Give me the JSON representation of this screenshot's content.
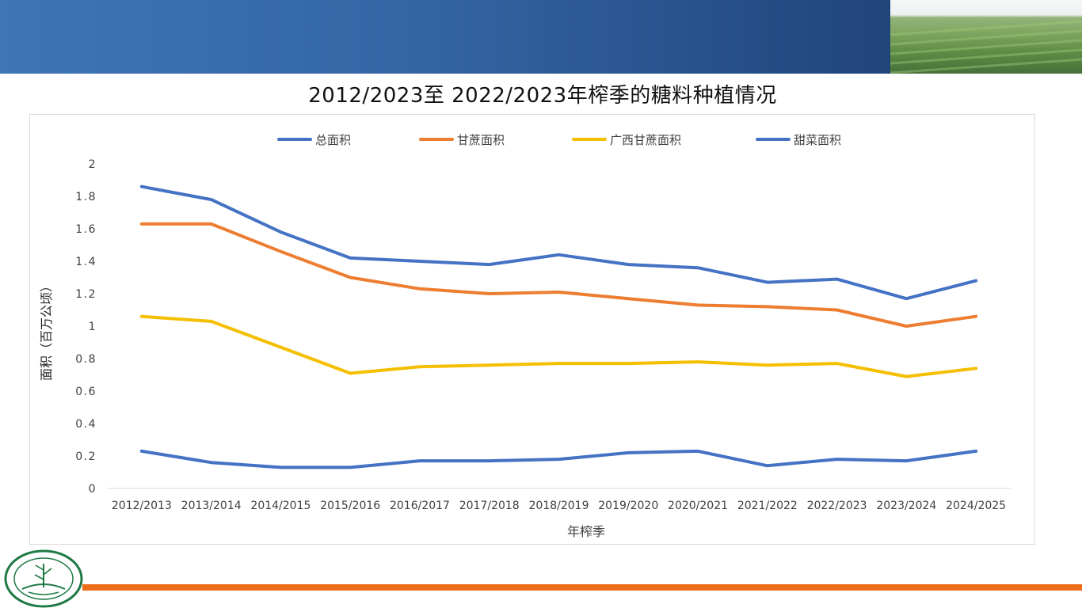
{
  "slide": {
    "title": "2012/2023至 2022/2023年榨季的糖料种植情况"
  },
  "colors": {
    "header": "#3466a6",
    "accent_line": "#ee6d1a",
    "series_total": "#4472c4",
    "series_cane": "#ed7d31",
    "series_guangxi": "#f5bf00",
    "series_beet": "#4472c4"
  },
  "chart_data": {
    "type": "line",
    "title": "",
    "xlabel": "年榨季",
    "ylabel": "面积（百万公顷）",
    "ylim": [
      0,
      2
    ],
    "yticks": [
      "0",
      "0.2",
      "0.4",
      "0.6",
      "0.8",
      "1",
      "1.2",
      "1.4",
      "1.6",
      "1.8",
      "2"
    ],
    "legend_position": "top",
    "gridlines": false,
    "categories": [
      "2012/2013",
      "2013/2014",
      "2014/2015",
      "2015/2016",
      "2016/2017",
      "2017/2018",
      "2018/2019",
      "2019/2020",
      "2020/2021",
      "2021/2022",
      "2022/2023",
      "2023/2024",
      "2024/2025"
    ],
    "series": [
      {
        "name": "总面积",
        "color": "#4472c4",
        "values": [
          1.86,
          1.78,
          1.58,
          1.42,
          1.4,
          1.38,
          1.44,
          1.38,
          1.36,
          1.27,
          1.29,
          1.17,
          1.28
        ]
      },
      {
        "name": "甘蔗面积",
        "color": "#ed7d31",
        "values": [
          1.63,
          1.63,
          1.46,
          1.3,
          1.23,
          1.2,
          1.21,
          1.17,
          1.13,
          1.12,
          1.1,
          1.0,
          1.06
        ]
      },
      {
        "name": "广西甘蔗面积",
        "color": "#f5bf00",
        "values": [
          1.06,
          1.03,
          0.87,
          0.71,
          0.75,
          0.76,
          0.77,
          0.77,
          0.78,
          0.76,
          0.77,
          0.69,
          0.74
        ]
      },
      {
        "name": "甜菜面积",
        "color": "#4472c4",
        "values": [
          0.23,
          0.16,
          0.13,
          0.13,
          0.17,
          0.17,
          0.18,
          0.22,
          0.23,
          0.14,
          0.18,
          0.17,
          0.23
        ]
      }
    ]
  }
}
